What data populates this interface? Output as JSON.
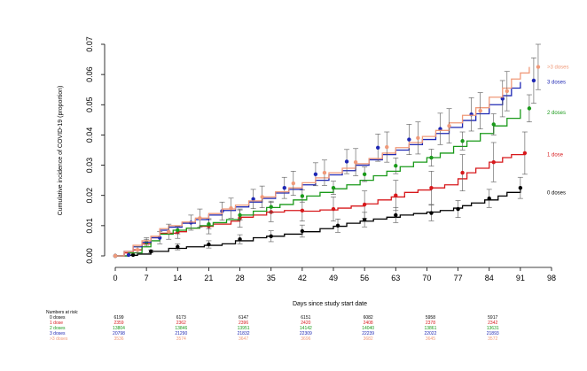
{
  "chart_data": {
    "type": "line",
    "xlabel": "Days since study start date",
    "ylabel": "Cumulative incidence of COVID-19 (proportion)",
    "xlim": [
      0,
      98
    ],
    "ylim": [
      0,
      0.07
    ],
    "x_ticks": [
      "0",
      "7",
      "14",
      "21",
      "28",
      "35",
      "42",
      "49",
      "56",
      "63",
      "70",
      "77",
      "84",
      "91",
      "98"
    ],
    "y_ticks": [
      "0.00",
      "0.01",
      "0.02",
      "0.03",
      "0.04",
      "0.05",
      "0.06",
      "0.07"
    ],
    "grid": false,
    "legend": "right-end labels",
    "series": [
      {
        "name": "0 doses",
        "color": "#000000",
        "steps": [
          [
            0,
            0
          ],
          [
            3,
            0.0002
          ],
          [
            5,
            0.0006
          ],
          [
            8,
            0.0015
          ],
          [
            12,
            0.0025
          ],
          [
            16,
            0.003
          ],
          [
            20,
            0.0035
          ],
          [
            24,
            0.004
          ],
          [
            27,
            0.005
          ],
          [
            31,
            0.006
          ],
          [
            34,
            0.0065
          ],
          [
            38,
            0.0072
          ],
          [
            42,
            0.008
          ],
          [
            46,
            0.009
          ],
          [
            49,
            0.0098
          ],
          [
            52,
            0.0108
          ],
          [
            55,
            0.0115
          ],
          [
            58,
            0.0122
          ],
          [
            61,
            0.0128
          ],
          [
            64,
            0.0135
          ],
          [
            67,
            0.014
          ],
          [
            70,
            0.0145
          ],
          [
            73,
            0.015
          ],
          [
            76,
            0.0158
          ],
          [
            78,
            0.0166
          ],
          [
            80,
            0.0175
          ],
          [
            83,
            0.0185
          ],
          [
            86,
            0.0198
          ],
          [
            88,
            0.021
          ],
          [
            91,
            0.0225
          ]
        ],
        "points": [
          [
            0,
            0
          ],
          [
            4,
            0.0003
          ],
          [
            8,
            0.0015
          ],
          [
            14,
            0.003
          ],
          [
            21,
            0.0038
          ],
          [
            28,
            0.0055
          ],
          [
            35,
            0.0065
          ],
          [
            42,
            0.0082
          ],
          [
            50,
            0.01
          ],
          [
            56,
            0.012
          ],
          [
            63,
            0.0135
          ],
          [
            71,
            0.0142
          ],
          [
            77,
            0.0155
          ],
          [
            84,
            0.019
          ],
          [
            91,
            0.0225
          ]
        ],
        "errors": [
          0,
          0,
          0.0005,
          0.001,
          0.0012,
          0.0015,
          0.0018,
          0.002,
          0.0022,
          0.0024,
          0.0025,
          0.0026,
          0.0028,
          0.003,
          0.0035
        ],
        "label_y": 0.021
      },
      {
        "name": "1 dose",
        "color": "#d7191c",
        "steps": [
          [
            0,
            0
          ],
          [
            2,
            0.001
          ],
          [
            4,
            0.002
          ],
          [
            6,
            0.004
          ],
          [
            8,
            0.006
          ],
          [
            10,
            0.0075
          ],
          [
            14,
            0.008
          ],
          [
            16,
            0.0092
          ],
          [
            19,
            0.0098
          ],
          [
            22,
            0.0105
          ],
          [
            26,
            0.0115
          ],
          [
            28,
            0.0128
          ],
          [
            31,
            0.0135
          ],
          [
            34,
            0.0145
          ],
          [
            38,
            0.015
          ],
          [
            42,
            0.0148
          ],
          [
            46,
            0.0152
          ],
          [
            50,
            0.0158
          ],
          [
            53,
            0.0165
          ],
          [
            56,
            0.0172
          ],
          [
            59,
            0.0185
          ],
          [
            62,
            0.0195
          ],
          [
            65,
            0.021
          ],
          [
            68,
            0.0218
          ],
          [
            71,
            0.0225
          ],
          [
            74,
            0.0235
          ],
          [
            77,
            0.0255
          ],
          [
            79,
            0.0275
          ],
          [
            81,
            0.029
          ],
          [
            84,
            0.031
          ],
          [
            87,
            0.0325
          ],
          [
            89,
            0.0335
          ],
          [
            92,
            0.034
          ]
        ],
        "points": [
          [
            0,
            0
          ],
          [
            7,
            0.0045
          ],
          [
            14,
            0.0078
          ],
          [
            21,
            0.0098
          ],
          [
            28,
            0.0125
          ],
          [
            35,
            0.0145
          ],
          [
            42,
            0.015
          ],
          [
            49,
            0.0155
          ],
          [
            56,
            0.017
          ],
          [
            63,
            0.02
          ],
          [
            71,
            0.0225
          ],
          [
            78,
            0.0275
          ],
          [
            85,
            0.031
          ],
          [
            92,
            0.034
          ]
        ],
        "errors": [
          0,
          0.0015,
          0.002,
          0.0025,
          0.003,
          0.0032,
          0.0035,
          0.004,
          0.0045,
          0.005,
          0.0055,
          0.006,
          0.0065,
          0.007
        ],
        "label_y": 0.0335
      },
      {
        "name": "2 doses",
        "color": "#1a9a1a",
        "steps": [
          [
            0,
            0
          ],
          [
            3,
            0.001
          ],
          [
            6,
            0.003
          ],
          [
            8,
            0.005
          ],
          [
            10,
            0.0072
          ],
          [
            13,
            0.0085
          ],
          [
            16,
            0.0092
          ],
          [
            19,
            0.01
          ],
          [
            22,
            0.011
          ],
          [
            25,
            0.012
          ],
          [
            28,
            0.0135
          ],
          [
            31,
            0.0148
          ],
          [
            34,
            0.016
          ],
          [
            37,
            0.017
          ],
          [
            40,
            0.0185
          ],
          [
            43,
            0.0198
          ],
          [
            46,
            0.021
          ],
          [
            49,
            0.0222
          ],
          [
            52,
            0.0235
          ],
          [
            55,
            0.025
          ],
          [
            58,
            0.0265
          ],
          [
            61,
            0.028
          ],
          [
            64,
            0.0295
          ],
          [
            67,
            0.031
          ],
          [
            70,
            0.0325
          ],
          [
            73,
            0.034
          ],
          [
            76,
            0.0362
          ],
          [
            79,
            0.038
          ],
          [
            82,
            0.0405
          ],
          [
            85,
            0.043
          ],
          [
            88,
            0.0455
          ],
          [
            91,
            0.0485
          ]
        ],
        "points": [
          [
            0,
            0
          ],
          [
            7,
            0.0045
          ],
          [
            14,
            0.0085
          ],
          [
            21,
            0.0105
          ],
          [
            28,
            0.0135
          ],
          [
            35,
            0.0162
          ],
          [
            42,
            0.0198
          ],
          [
            49,
            0.0225
          ],
          [
            56,
            0.027
          ],
          [
            63,
            0.0298
          ],
          [
            71,
            0.0325
          ],
          [
            78,
            0.038
          ],
          [
            85,
            0.0435
          ],
          [
            93,
            0.0488
          ]
        ],
        "errors": [
          0,
          0.001,
          0.0012,
          0.0015,
          0.0017,
          0.0019,
          0.002,
          0.0022,
          0.0024,
          0.0026,
          0.0028,
          0.003,
          0.0035,
          0.0045
        ],
        "label_y": 0.0475
      },
      {
        "name": "3 doses",
        "color": "#1f28b4",
        "steps": [
          [
            0,
            0
          ],
          [
            2,
            0.0015
          ],
          [
            4,
            0.003
          ],
          [
            6,
            0.0045
          ],
          [
            8,
            0.006
          ],
          [
            10,
            0.0085
          ],
          [
            12,
            0.0095
          ],
          [
            15,
            0.0108
          ],
          [
            18,
            0.012
          ],
          [
            21,
            0.0135
          ],
          [
            24,
            0.015
          ],
          [
            27,
            0.0162
          ],
          [
            30,
            0.0178
          ],
          [
            33,
            0.019
          ],
          [
            36,
            0.0208
          ],
          [
            39,
            0.022
          ],
          [
            42,
            0.0235
          ],
          [
            45,
            0.025
          ],
          [
            48,
            0.0268
          ],
          [
            51,
            0.0282
          ],
          [
            54,
            0.03
          ],
          [
            57,
            0.0318
          ],
          [
            60,
            0.0335
          ],
          [
            63,
            0.035
          ],
          [
            66,
            0.0368
          ],
          [
            69,
            0.0385
          ],
          [
            72,
            0.0405
          ],
          [
            75,
            0.0425
          ],
          [
            78,
            0.0448
          ],
          [
            81,
            0.047
          ],
          [
            84,
            0.05
          ],
          [
            87,
            0.053
          ],
          [
            89,
            0.0555
          ],
          [
            91,
            0.0575
          ]
        ],
        "points": [
          [
            0,
            0
          ],
          [
            3,
            0.0003
          ],
          [
            10,
            0.006
          ],
          [
            17,
            0.011
          ],
          [
            24,
            0.0148
          ],
          [
            31,
            0.0188
          ],
          [
            38,
            0.0225
          ],
          [
            45,
            0.027
          ],
          [
            52,
            0.0312
          ],
          [
            59,
            0.0358
          ],
          [
            66,
            0.0385
          ],
          [
            73,
            0.042
          ],
          [
            80,
            0.0468
          ],
          [
            87,
            0.052
          ],
          [
            94,
            0.058
          ]
        ],
        "errors": [
          0,
          0,
          0.002,
          0.0025,
          0.003,
          0.0032,
          0.0035,
          0.0038,
          0.004,
          0.0045,
          0.005,
          0.0052,
          0.0055,
          0.006,
          0.0075
        ],
        "label_y": 0.0575
      },
      {
        "name": ">3 doses",
        "color": "#f09a7a",
        "steps": [
          [
            0,
            0
          ],
          [
            2,
            0.0015
          ],
          [
            4,
            0.0035
          ],
          [
            6,
            0.005
          ],
          [
            8,
            0.0065
          ],
          [
            10,
            0.009
          ],
          [
            12,
            0.01
          ],
          [
            15,
            0.0112
          ],
          [
            18,
            0.0125
          ],
          [
            21,
            0.014
          ],
          [
            24,
            0.0155
          ],
          [
            27,
            0.0168
          ],
          [
            30,
            0.0182
          ],
          [
            33,
            0.0195
          ],
          [
            36,
            0.0212
          ],
          [
            39,
            0.0225
          ],
          [
            42,
            0.0242
          ],
          [
            45,
            0.0258
          ],
          [
            48,
            0.0275
          ],
          [
            51,
            0.029
          ],
          [
            54,
            0.0305
          ],
          [
            57,
            0.0322
          ],
          [
            60,
            0.034
          ],
          [
            63,
            0.0358
          ],
          [
            66,
            0.0375
          ],
          [
            69,
            0.0395
          ],
          [
            72,
            0.0415
          ],
          [
            75,
            0.044
          ],
          [
            78,
            0.0465
          ],
          [
            81,
            0.049
          ],
          [
            84,
            0.0525
          ],
          [
            87,
            0.0555
          ],
          [
            89,
            0.0585
          ],
          [
            91,
            0.0605
          ],
          [
            93,
            0.0625
          ]
        ],
        "points": [
          [
            0,
            0
          ],
          [
            5,
            0.002
          ],
          [
            12,
            0.008
          ],
          [
            19,
            0.0125
          ],
          [
            26,
            0.0158
          ],
          [
            33,
            0.0195
          ],
          [
            40,
            0.024
          ],
          [
            47,
            0.0275
          ],
          [
            54,
            0.031
          ],
          [
            61,
            0.036
          ],
          [
            68,
            0.039
          ],
          [
            75,
            0.043
          ],
          [
            82,
            0.048
          ],
          [
            88,
            0.0545
          ],
          [
            95,
            0.0625
          ]
        ],
        "errors": [
          0,
          0.001,
          0.0025,
          0.003,
          0.0033,
          0.0036,
          0.004,
          0.0042,
          0.0045,
          0.005,
          0.0053,
          0.0057,
          0.006,
          0.0065,
          0.0075
        ],
        "label_y": 0.0625
      }
    ],
    "risk_table": {
      "title": "Numbers at risk:",
      "columns": [
        "0",
        "14",
        "28",
        "42",
        "56",
        "70",
        "84"
      ],
      "rows": [
        {
          "name": "0 doses",
          "color": "#000000",
          "values": [
            "6199",
            "6173",
            "6147",
            "6151",
            "6082",
            "5958",
            "5917"
          ]
        },
        {
          "name": "1 dose",
          "color": "#d7191c",
          "values": [
            "2359",
            "2362",
            "2396",
            "2420",
            "2408",
            "2378",
            "2342"
          ]
        },
        {
          "name": "2 doses",
          "color": "#1a9a1a",
          "values": [
            "13804",
            "13846",
            "13951",
            "14142",
            "14040",
            "13861",
            "13631"
          ]
        },
        {
          "name": "3 doses",
          "color": "#1f28b4",
          "values": [
            "20798",
            "21290",
            "21832",
            "22309",
            "22239",
            "22022",
            "21893"
          ]
        },
        {
          "name": ">3 doses",
          "color": "#f09a7a",
          "values": [
            "3536",
            "3574",
            "3647",
            "3696",
            "3682",
            "3645",
            "3572"
          ]
        }
      ]
    }
  }
}
